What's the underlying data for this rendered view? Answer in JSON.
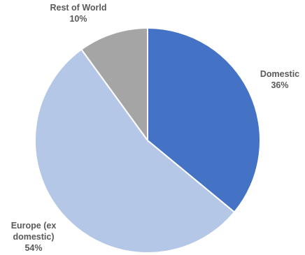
{
  "chart_data": {
    "type": "pie",
    "title": "",
    "categories": [
      "Domestic",
      "Europe (ex domestic)",
      "Rest of World"
    ],
    "values": [
      36,
      54,
      10
    ],
    "data_labels": [
      {
        "name_lines": [
          "Domestic"
        ],
        "value_text": "36%"
      },
      {
        "name_lines": [
          "Europe (ex",
          "domestic)"
        ],
        "value_text": "54%"
      },
      {
        "name_lines": [
          "Rest of World"
        ],
        "value_text": "10%"
      }
    ],
    "colors": [
      "#4472C4",
      "#B4C7E7",
      "#A5A5A5"
    ],
    "start_angle_deg": 0,
    "direction": "clockwise",
    "legend": "none"
  }
}
